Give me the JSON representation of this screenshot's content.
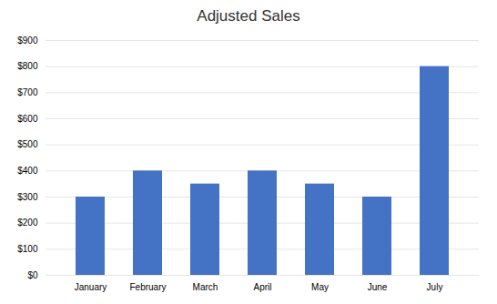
{
  "chart_data": {
    "type": "bar",
    "title": "Adjusted Sales",
    "categories": [
      "January",
      "February",
      "March",
      "April",
      "May",
      "June",
      "July"
    ],
    "values": [
      300,
      400,
      350,
      400,
      350,
      300,
      800
    ],
    "color": "#4472C4",
    "ylim": [
      0,
      900
    ],
    "yticks": [
      {
        "value": 0,
        "label": "$0"
      },
      {
        "value": 100,
        "label": "$100"
      },
      {
        "value": 200,
        "label": "$200"
      },
      {
        "value": 300,
        "label": "$300"
      },
      {
        "value": 400,
        "label": "$400"
      },
      {
        "value": 500,
        "label": "$500"
      },
      {
        "value": 600,
        "label": "$600"
      },
      {
        "value": 700,
        "label": "$700"
      },
      {
        "value": 800,
        "label": "$800"
      },
      {
        "value": 900,
        "label": "$900"
      }
    ],
    "grid": true
  }
}
